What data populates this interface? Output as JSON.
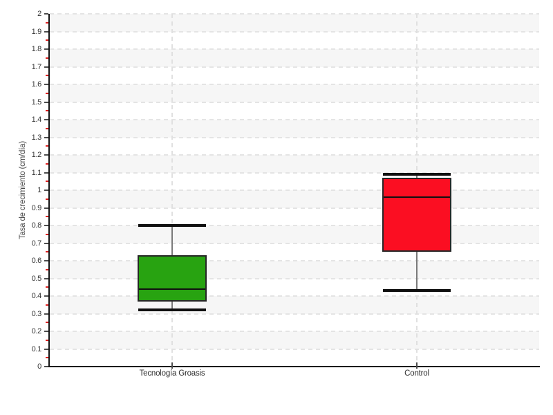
{
  "chart_data": {
    "type": "box",
    "title": "",
    "xlabel": "",
    "ylabel": "Tasa de crecimiento (cm/día)",
    "ylim": [
      0,
      2
    ],
    "ytick_step": 0.1,
    "ytick_labels": [
      "0",
      "0.1",
      "0.2",
      "0.3",
      "0.4",
      "0.5",
      "0.6",
      "0.7",
      "0.8",
      "0.9",
      "1",
      "1.1",
      "1.2",
      "1.3",
      "1.4",
      "1.5",
      "1.6",
      "1.7",
      "1.8",
      "1.9",
      "2"
    ],
    "minor_tick_step": 0.05,
    "categories": [
      "Tecnología Groasis",
      "Control"
    ],
    "series": [
      {
        "name": "Tecnología Groasis",
        "min": 0.32,
        "q1": 0.37,
        "median": 0.44,
        "q3": 0.63,
        "max": 0.8,
        "fill": "#28a311"
      },
      {
        "name": "Control",
        "min": 0.43,
        "q1": 0.65,
        "median": 0.96,
        "q3": 1.07,
        "max": 1.09,
        "fill": "#fb0e22"
      }
    ],
    "legend": "none",
    "grid": {
      "horizontal": "dashed every 0.1",
      "vertical": "dashed at category centers",
      "zebra_bands": true
    },
    "colors": {
      "band_gray": "#f6f6f6",
      "gridline": "#e4e4e4",
      "axis": "#141414",
      "major_tick": "#4d4d4d",
      "minor_tick": "#e02020",
      "whisker_line": "#7a7a7a",
      "whisker_cap": "#101010",
      "box_border": "#262626",
      "median_line": "#101010",
      "tick_label": "#353535",
      "category_label": "#2e2e2e",
      "axis_title": "#4a4a4a"
    }
  }
}
